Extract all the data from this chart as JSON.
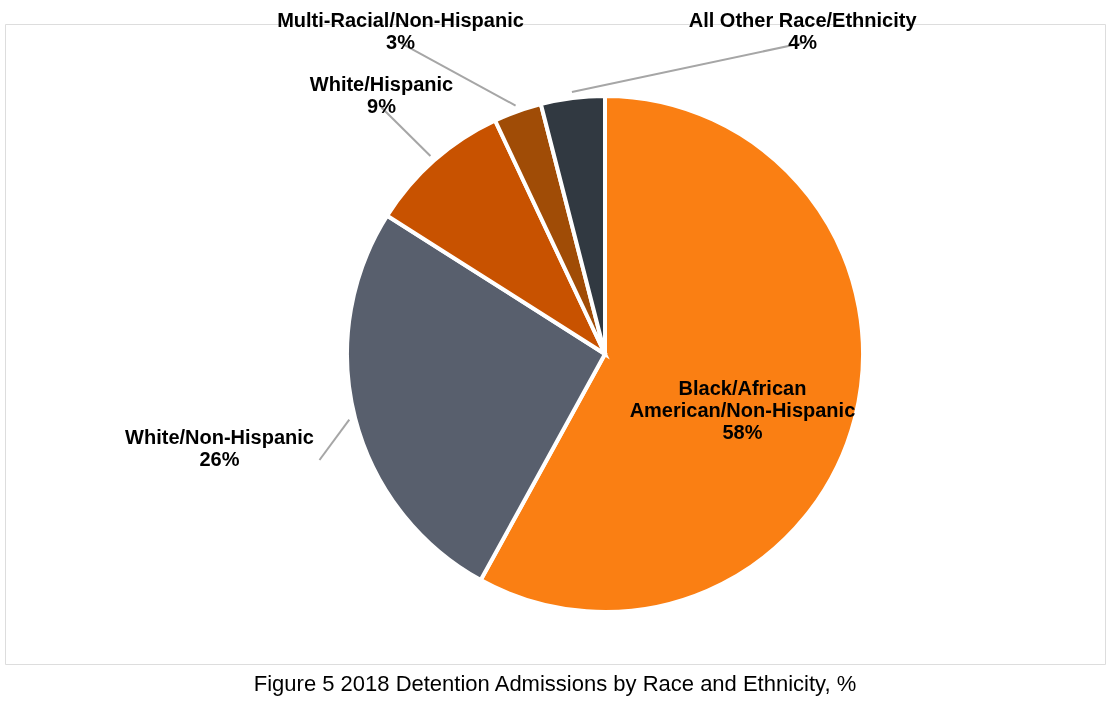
{
  "chart_data": {
    "type": "pie",
    "categories": [
      "Black/African American/Non-Hispanic",
      "White/Non-Hispanic",
      "White/Hispanic",
      "Multi-Racial/Non-Hispanic",
      "All Other Race/Ethnicity"
    ],
    "values": [
      58,
      26,
      9,
      3,
      4
    ],
    "colors": [
      "#fa7f13",
      "#585f6d",
      "#c85200",
      "#a04c06",
      "#313941"
    ],
    "value_labels": [
      "58%",
      "26%",
      "9%",
      "3%",
      "4%"
    ],
    "legend": false,
    "annotations": [
      "Figure 5 2018 Detention Admissions by Race and Ethnicity, %"
    ]
  }
}
